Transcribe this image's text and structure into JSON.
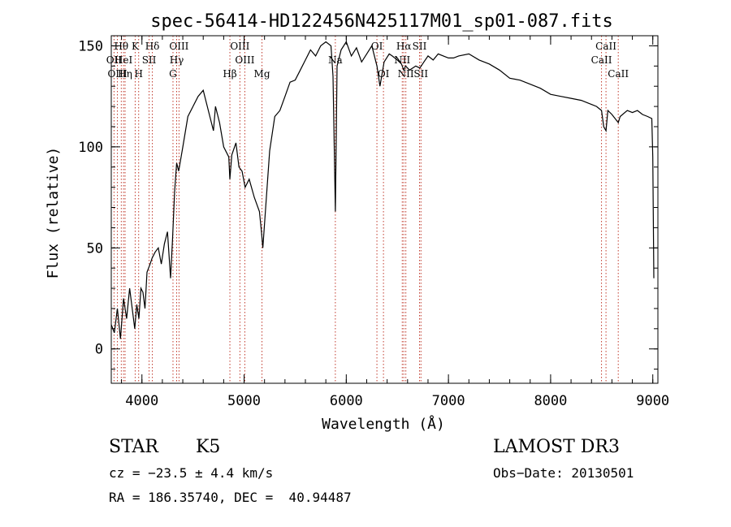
{
  "chart_data": {
    "type": "line",
    "title": "spec-56414-HD122456N425117M01_sp01-087.fits",
    "xlabel": "Wavelength (Å)",
    "ylabel": "Flux (relative)",
    "xlim": [
      3700,
      9050
    ],
    "ylim": [
      -17,
      155
    ],
    "xticks": [
      4000,
      5000,
      6000,
      7000,
      8000,
      9000
    ],
    "yticks": [
      0,
      50,
      100,
      150
    ],
    "x_minor_step": 200,
    "y_minor_step": 10,
    "grid": false,
    "legend": "none",
    "series": [
      {
        "name": "flux",
        "x": [
          3700,
          3730,
          3760,
          3790,
          3820,
          3850,
          3880,
          3910,
          3930,
          3950,
          3970,
          3990,
          4010,
          4030,
          4050,
          4080,
          4100,
          4130,
          4160,
          4190,
          4220,
          4250,
          4280,
          4300,
          4320,
          4340,
          4360,
          4400,
          4450,
          4500,
          4550,
          4600,
          4650,
          4700,
          4720,
          4760,
          4800,
          4850,
          4861,
          4880,
          4920,
          4950,
          4980,
          5010,
          5050,
          5100,
          5150,
          5170,
          5183,
          5200,
          5250,
          5300,
          5350,
          5400,
          5450,
          5500,
          5550,
          5600,
          5650,
          5700,
          5750,
          5800,
          5850,
          5870,
          5893,
          5910,
          5950,
          6000,
          6050,
          6100,
          6150,
          6200,
          6250,
          6300,
          6330,
          6370,
          6420,
          6450,
          6500,
          6540,
          6563,
          6580,
          6620,
          6680,
          6720,
          6760,
          6800,
          6850,
          6900,
          6950,
          7000,
          7050,
          7100,
          7200,
          7300,
          7400,
          7500,
          7600,
          7700,
          7800,
          7900,
          8000,
          8100,
          8200,
          8300,
          8400,
          8450,
          8498,
          8520,
          8542,
          8560,
          8600,
          8662,
          8680,
          8750,
          8800,
          8850,
          8900,
          8950,
          8990,
          9000,
          9010
        ],
        "values": [
          12,
          8,
          20,
          5,
          25,
          15,
          30,
          18,
          10,
          22,
          15,
          30,
          28,
          20,
          38,
          42,
          45,
          48,
          50,
          42,
          52,
          58,
          35,
          55,
          78,
          92,
          88,
          100,
          115,
          120,
          125,
          128,
          118,
          108,
          120,
          112,
          100,
          95,
          84,
          96,
          102,
          90,
          88,
          80,
          84,
          75,
          68,
          58,
          50,
          62,
          98,
          115,
          118,
          125,
          132,
          133,
          138,
          143,
          148,
          145,
          150,
          152,
          150,
          135,
          68,
          140,
          148,
          152,
          145,
          149,
          142,
          146,
          150,
          140,
          130,
          142,
          146,
          145,
          143,
          141,
          138,
          140,
          138,
          140,
          139,
          142,
          145,
          143,
          146,
          145,
          144,
          144,
          145,
          146,
          143,
          141,
          138,
          134,
          133,
          131,
          129,
          126,
          125,
          124,
          123,
          121,
          120,
          118,
          110,
          108,
          118,
          116,
          112,
          115,
          118,
          117,
          118,
          116,
          115,
          114,
          95,
          35
        ]
      }
    ],
    "lines": [
      {
        "name": "Hθ",
        "x": 3798,
        "row": 1
      },
      {
        "name": "OII",
        "x": 3727,
        "row": 2
      },
      {
        "name": "OIII",
        "x": 3760,
        "row": 3
      },
      {
        "name": "HeI",
        "x": 3820,
        "row": 2
      },
      {
        "name": "Hη",
        "x": 3835,
        "row": 3
      },
      {
        "name": "K",
        "x": 3934,
        "row": 1
      },
      {
        "name": "SII",
        "x": 4070,
        "row": 2
      },
      {
        "name": "H",
        "x": 3968,
        "row": 3
      },
      {
        "name": "Hδ",
        "x": 4102,
        "row": 1
      },
      {
        "name": "OIII",
        "x": 4363,
        "row": 1
      },
      {
        "name": "Hγ",
        "x": 4340,
        "row": 2
      },
      {
        "name": "G",
        "x": 4304,
        "row": 3
      },
      {
        "name": "OIII",
        "x": 4959,
        "row": 1
      },
      {
        "name": "OIII",
        "x": 5007,
        "row": 2
      },
      {
        "name": "Hβ",
        "x": 4861,
        "row": 3
      },
      {
        "name": "Mg",
        "x": 5175,
        "row": 3
      },
      {
        "name": "Na",
        "x": 5893,
        "row": 2
      },
      {
        "name": "OI",
        "x": 6300,
        "row": 1
      },
      {
        "name": "OI",
        "x": 6364,
        "row": 3
      },
      {
        "name": "Hα",
        "x": 6563,
        "row": 1
      },
      {
        "name": "NII",
        "x": 6548,
        "row": 2
      },
      {
        "name": "NII",
        "x": 6583,
        "row": 3
      },
      {
        "name": "SII",
        "x": 6717,
        "row": 1
      },
      {
        "name": "SII",
        "x": 6731,
        "row": 3
      },
      {
        "name": "CaII",
        "x": 8498,
        "row": 2
      },
      {
        "name": "CaII",
        "x": 8542,
        "row": 1
      },
      {
        "name": "CaII",
        "x": 8662,
        "row": 3
      }
    ]
  },
  "info": {
    "object_class": "STAR",
    "subclass": "K5",
    "survey": "LAMOST DR3",
    "velocity": "cz = −23.5 ± 4.4 km/s",
    "obs_date": "Obs−Date: 20130501",
    "coords": "RA = 186.35740, DEC =  40.94487"
  },
  "colors": {
    "line": "#000000",
    "marker": "#c0392b"
  }
}
